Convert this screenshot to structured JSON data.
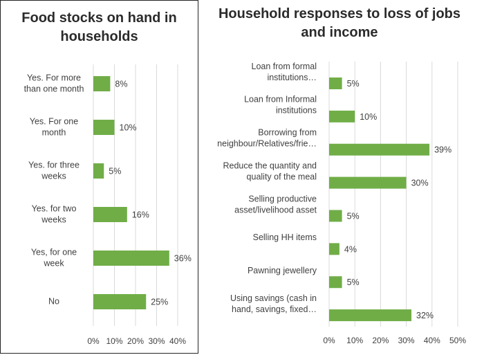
{
  "charts": {
    "left": {
      "title": "Food stocks on hand in households"
    },
    "right": {
      "title": "Household responses to loss of jobs and income"
    }
  },
  "chart_data": [
    {
      "type": "bar",
      "orientation": "horizontal",
      "title": "Food stocks on hand in households",
      "categories": [
        [
          "Yes. For more",
          "than one month"
        ],
        [
          "Yes. For one",
          "month"
        ],
        [
          "Yes. for three",
          "weeks"
        ],
        [
          "Yes. for two",
          "weeks"
        ],
        [
          "Yes, for one",
          "week"
        ],
        [
          "No"
        ]
      ],
      "values": [
        8,
        10,
        5,
        16,
        36,
        25
      ],
      "value_labels": [
        "8%",
        "10%",
        "5%",
        "16%",
        "36%",
        "25%"
      ],
      "xlim": [
        0,
        40
      ],
      "xticks": [
        "0%",
        "10%",
        "20%",
        "30%",
        "40%"
      ],
      "bar_color": "#70ad47",
      "grid": true
    },
    {
      "type": "bar",
      "orientation": "horizontal",
      "title": "Household responses to loss of jobs and income",
      "categories": [
        [
          "Loan from formal",
          "institutions…"
        ],
        [
          "Loan from Informal",
          "institutions"
        ],
        [
          "Borrowing from",
          "neighbour/Relatives/frie…"
        ],
        [
          "Reduce the quantity and",
          "quality of the meal"
        ],
        [
          "Selling productive",
          "asset/livelihood asset"
        ],
        [
          "Selling HH items"
        ],
        [
          "Pawning jewellery"
        ],
        [
          "Using savings (cash in",
          "hand, savings, fixed…"
        ]
      ],
      "values": [
        5,
        10,
        39,
        30,
        5,
        4,
        5,
        32
      ],
      "value_labels": [
        "5%",
        "10%",
        "39%",
        "30%",
        "5%",
        "4%",
        "5%",
        "32%"
      ],
      "xlim": [
        0,
        50
      ],
      "xticks": [
        "0%",
        "10%",
        "20%",
        "30%",
        "40%",
        "50%"
      ],
      "bar_color": "#70ad47",
      "grid": true
    }
  ]
}
